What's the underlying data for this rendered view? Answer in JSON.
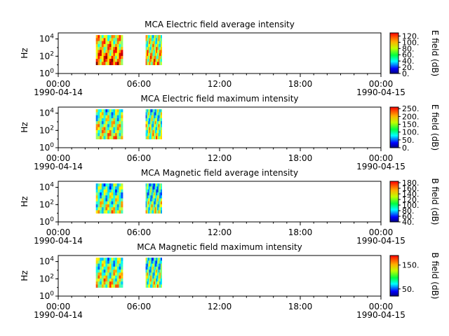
{
  "chart_data": [
    {
      "type": "heatmap",
      "title": "MCA  Electric field average intensity",
      "ylabel": "Hz",
      "yscale": "log",
      "ylim": [
        1,
        50000
      ],
      "yticks": [
        {
          "v": 1,
          "b": "10",
          "e": "0"
        },
        {
          "v": 100,
          "b": "10",
          "e": "2"
        },
        {
          "v": 10000,
          "b": "10",
          "e": "4"
        }
      ],
      "xlim_hours": [
        0,
        24
      ],
      "xticks": [
        {
          "h": 0,
          "l1": "00:00",
          "l2": "1990-04-14"
        },
        {
          "h": 6,
          "l1": "06:00",
          "l2": ""
        },
        {
          "h": 12,
          "l1": "12:00",
          "l2": ""
        },
        {
          "h": 18,
          "l1": "18:00",
          "l2": ""
        },
        {
          "h": 24,
          "l1": "00:00",
          "l2": "1990-04-15"
        }
      ],
      "colorbar": {
        "label": "E field (dB)",
        "min": 0,
        "max": 130,
        "ticks": [
          0,
          20,
          40,
          60,
          80,
          100,
          120
        ],
        "tick_labels": [
          "0.",
          "20.",
          "40.",
          "60.",
          "80.",
          "100.",
          "120."
        ]
      },
      "data_blocks": [
        {
          "start_hour": 2.8,
          "end_hour": 4.8,
          "freq_range_hz": [
            10,
            28000
          ],
          "level": 90
        },
        {
          "start_hour": 6.5,
          "end_hour": 7.7,
          "freq_range_hz": [
            10,
            28000
          ],
          "level": 78
        }
      ]
    },
    {
      "type": "heatmap",
      "title": "MCA  Electric field maximum intensity",
      "ylabel": "Hz",
      "yscale": "log",
      "ylim": [
        1,
        50000
      ],
      "yticks": [
        {
          "v": 1,
          "b": "10",
          "e": "0"
        },
        {
          "v": 100,
          "b": "10",
          "e": "2"
        },
        {
          "v": 10000,
          "b": "10",
          "e": "4"
        }
      ],
      "xlim_hours": [
        0,
        24
      ],
      "xticks": [
        {
          "h": 0,
          "l1": "00:00",
          "l2": "1990-04-14"
        },
        {
          "h": 6,
          "l1": "06:00",
          "l2": ""
        },
        {
          "h": 12,
          "l1": "12:00",
          "l2": ""
        },
        {
          "h": 18,
          "l1": "18:00",
          "l2": ""
        },
        {
          "h": 24,
          "l1": "00:00",
          "l2": "1990-04-15"
        }
      ],
      "colorbar": {
        "label": "E field (dB)",
        "min": 0,
        "max": 260,
        "ticks": [
          0,
          50,
          100,
          150,
          200,
          250
        ],
        "tick_labels": [
          "0.",
          "50.",
          "100.",
          "150.",
          "200.",
          "250."
        ]
      },
      "data_blocks": [
        {
          "start_hour": 2.8,
          "end_hour": 4.8,
          "freq_range_hz": [
            10,
            28000
          ],
          "level": 140
        },
        {
          "start_hour": 6.5,
          "end_hour": 7.7,
          "freq_range_hz": [
            10,
            28000
          ],
          "level": 130
        }
      ]
    },
    {
      "type": "heatmap",
      "title": "MCA  Magnetic field average intensity",
      "ylabel": "Hz",
      "yscale": "log",
      "ylim": [
        1,
        50000
      ],
      "yticks": [
        {
          "v": 1,
          "b": "10",
          "e": "0"
        },
        {
          "v": 100,
          "b": "10",
          "e": "2"
        },
        {
          "v": 10000,
          "b": "10",
          "e": "4"
        }
      ],
      "xlim_hours": [
        0,
        24
      ],
      "xticks": [
        {
          "h": 0,
          "l1": "00:00",
          "l2": "1990-04-14"
        },
        {
          "h": 6,
          "l1": "06:00",
          "l2": ""
        },
        {
          "h": 12,
          "l1": "12:00",
          "l2": ""
        },
        {
          "h": 18,
          "l1": "18:00",
          "l2": ""
        },
        {
          "h": 24,
          "l1": "00:00",
          "l2": "1990-04-15"
        }
      ],
      "colorbar": {
        "label": "B field (dB)",
        "min": 40,
        "max": 185,
        "ticks": [
          40,
          60,
          80,
          100,
          120,
          140,
          160,
          180
        ],
        "tick_labels": [
          "40.",
          "60.",
          "80.",
          "100.",
          "120.",
          "140.",
          "160.",
          "180."
        ]
      },
      "data_blocks": [
        {
          "start_hour": 2.8,
          "end_hour": 4.8,
          "freq_range_hz": [
            10,
            28000
          ],
          "level": 110
        },
        {
          "start_hour": 6.5,
          "end_hour": 7.7,
          "freq_range_hz": [
            10,
            28000
          ],
          "level": 105
        }
      ]
    },
    {
      "type": "heatmap",
      "title": "MCA  Magnetic field maximum intensity",
      "ylabel": "Hz",
      "yscale": "log",
      "ylim": [
        1,
        50000
      ],
      "yticks": [
        {
          "v": 1,
          "b": "10",
          "e": "0"
        },
        {
          "v": 100,
          "b": "10",
          "e": "2"
        },
        {
          "v": 10000,
          "b": "10",
          "e": "4"
        }
      ],
      "xlim_hours": [
        0,
        24
      ],
      "xticks": [
        {
          "h": 0,
          "l1": "00:00",
          "l2": "1990-04-14"
        },
        {
          "h": 6,
          "l1": "06:00",
          "l2": ""
        },
        {
          "h": 12,
          "l1": "12:00",
          "l2": ""
        },
        {
          "h": 18,
          "l1": "18:00",
          "l2": ""
        },
        {
          "h": 24,
          "l1": "00:00",
          "l2": "1990-04-15"
        }
      ],
      "colorbar": {
        "label": "B field (dB)",
        "min": 20,
        "max": 190,
        "ticks": [
          50,
          150
        ],
        "tick_labels": [
          "50.",
          "150."
        ]
      },
      "data_blocks": [
        {
          "start_hour": 2.8,
          "end_hour": 4.8,
          "freq_range_hz": [
            10,
            28000
          ],
          "level": 110
        },
        {
          "start_hour": 6.5,
          "end_hour": 7.7,
          "freq_range_hz": [
            10,
            28000
          ],
          "level": 100
        }
      ]
    }
  ]
}
